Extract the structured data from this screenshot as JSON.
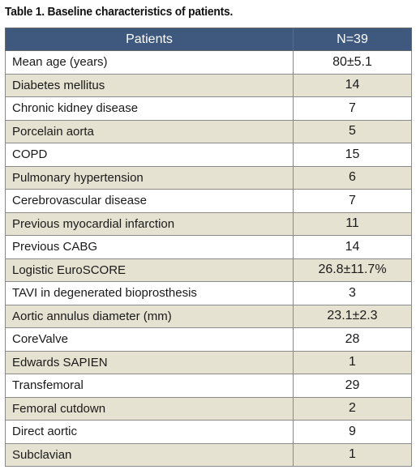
{
  "caption": "Table 1. Baseline characteristics of patients.",
  "table": {
    "headers": [
      "Patients",
      "N=39"
    ],
    "rows": [
      {
        "label": "Mean age (years)",
        "value": "80±5.1"
      },
      {
        "label": "Diabetes mellitus",
        "value": "14"
      },
      {
        "label": "Chronic kidney disease",
        "value": "7"
      },
      {
        "label": "Porcelain aorta",
        "value": "5"
      },
      {
        "label": "COPD",
        "value": "15"
      },
      {
        "label": "Pulmonary hypertension",
        "value": "6"
      },
      {
        "label": "Cerebrovascular disease",
        "value": "7"
      },
      {
        "label": "Previous myocardial infarction",
        "value": "11"
      },
      {
        "label": "Previous CABG",
        "value": "14"
      },
      {
        "label": "Logistic EuroSCORE",
        "value": "26.8±11.7%"
      },
      {
        "label": "TAVI in degenerated bioprosthesis",
        "value": "3"
      },
      {
        "label": "Aortic annulus diameter (mm)",
        "value": "23.1±2.3"
      },
      {
        "label": "CoreValve",
        "value": "28"
      },
      {
        "label": "Edwards SAPIEN",
        "value": "1"
      },
      {
        "label": "Transfemoral",
        "value": "29"
      },
      {
        "label": "Femoral cutdown",
        "value": "2"
      },
      {
        "label": "Direct aortic",
        "value": "9"
      },
      {
        "label": "Subclavian",
        "value": "1"
      }
    ]
  },
  "colors": {
    "header_bg": "#3e587e",
    "header_text": "#ffffff",
    "shaded_row": "#e5e2d1",
    "plain_row": "#ffffff"
  }
}
